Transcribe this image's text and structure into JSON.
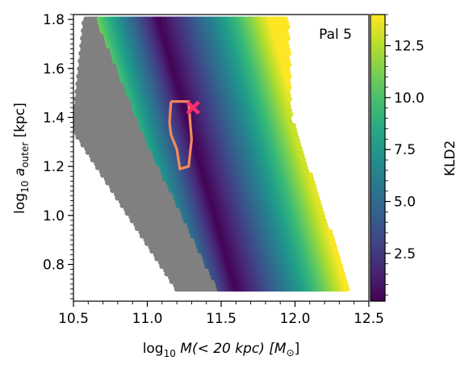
{
  "chart_data": {
    "type": "heatmap",
    "annotation": "Pal 5",
    "xlabel": {
      "pre": "log",
      "sub": "10",
      "post": " M(< 20 kpc) [M",
      "sym": "⊙",
      "end": "]"
    },
    "ylabel": {
      "pre": "log",
      "sub": "10",
      "mid": " a",
      "sub2": "outer",
      "post": " [kpc]"
    },
    "colorbar_label": "KLD2",
    "xlim": [
      10.5,
      12.5
    ],
    "ylim": [
      0.65,
      1.82
    ],
    "xticks": [
      10.5,
      11.0,
      11.5,
      12.0,
      12.5
    ],
    "xtick_labels": [
      "10.5",
      "11.0",
      "11.5",
      "12.0",
      "12.5"
    ],
    "yticks": [
      0.8,
      1.0,
      1.2,
      1.4,
      1.6,
      1.8
    ],
    "ytick_labels": [
      "0.8",
      "1.0",
      "1.2",
      "1.4",
      "1.6",
      "1.8"
    ],
    "colorbar_range": [
      0.2,
      14.0
    ],
    "colorbar_ticks": [
      2.5,
      5.0,
      7.5,
      10.0,
      12.5
    ],
    "colorbar_tick_labels": [
      "2.5",
      "5.0",
      "7.5",
      "10.0",
      "12.5"
    ],
    "colormap": "viridis",
    "grid": false,
    "region_bounds": {
      "grey_left": [
        [
          1.82,
          10.58
        ],
        [
          1.35,
          10.5
        ],
        [
          0.7,
          11.2
        ]
      ],
      "grey_right": [
        [
          1.82,
          10.65
        ],
        [
          1.3,
          11.0
        ],
        [
          0.7,
          11.48
        ]
      ],
      "data_right": [
        [
          1.82,
          11.95
        ],
        [
          1.4,
          11.97
        ],
        [
          0.7,
          12.37
        ]
      ],
      "minimum_valley": [
        [
          1.82,
          11.07
        ],
        [
          1.4,
          11.27
        ],
        [
          0.7,
          11.6
        ]
      ]
    },
    "gray_region_color": "#808080",
    "contour": {
      "color": "#f28a5a",
      "points": [
        [
          11.16,
          1.465
        ],
        [
          11.28,
          1.465
        ],
        [
          11.29,
          1.38
        ],
        [
          11.3,
          1.31
        ],
        [
          11.28,
          1.2
        ],
        [
          11.22,
          1.19
        ],
        [
          11.2,
          1.27
        ],
        [
          11.16,
          1.33
        ],
        [
          11.15,
          1.38
        ]
      ]
    },
    "best_fit": {
      "x": 11.31,
      "y": 1.44,
      "marker": "x",
      "color": "#ff2d6f"
    }
  }
}
